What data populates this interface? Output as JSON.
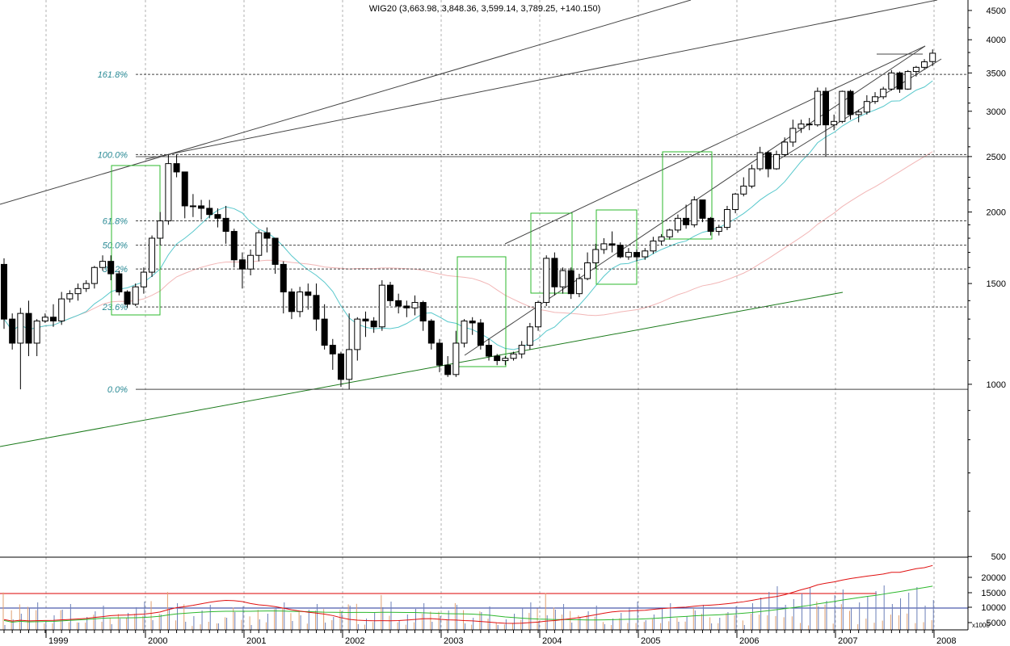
{
  "chart_data": {
    "type": "candlestick",
    "title": "WIG20 (3,663.98, 3,848.36, 3,599.14, 3,789.25, +140.150)",
    "price_axis": {
      "scale": "log",
      "ticks": [
        4500,
        4000,
        3500,
        3000,
        2500,
        2000,
        1500,
        1000,
        500
      ]
    },
    "time_axis": {
      "ticks": [
        "1999",
        "2000",
        "2001",
        "2002",
        "2003",
        "2004",
        "2005",
        "2006",
        "2007",
        "2008"
      ]
    },
    "fibonacci_levels": [
      {
        "label": "161.8%",
        "value": 3480
      },
      {
        "label": "100.0%",
        "value": 2520
      },
      {
        "label": "61.8%",
        "value": 1930
      },
      {
        "label": "50.0%",
        "value": 1750
      },
      {
        "label": "38.2%",
        "value": 1590
      },
      {
        "label": "23.6%",
        "value": 1365
      },
      {
        "label": "0.0%",
        "value": 980
      }
    ],
    "series": [
      {
        "name": "",
        "values": [
          [
            1620,
            1300,
            1660,
            1250
          ],
          [
            1300,
            1180,
            1330,
            1150
          ],
          [
            1180,
            1330,
            1360,
            980
          ],
          [
            1330,
            1180,
            1400,
            1120
          ],
          [
            1180,
            1290,
            1300,
            1120
          ],
          [
            1290,
            1310,
            1330,
            1280
          ],
          [
            1310,
            1290,
            1380,
            1260
          ],
          [
            1290,
            1410,
            1450,
            1270
          ],
          [
            1410,
            1440,
            1460,
            1390
          ],
          [
            1440,
            1470,
            1500,
            1400
          ],
          [
            1470,
            1500,
            1520,
            1450
          ],
          [
            1500,
            1600,
            1610,
            1470
          ],
          [
            1600,
            1640,
            1680,
            1580
          ],
          [
            1640,
            1560,
            1680,
            1520
          ],
          [
            1560,
            1450,
            1580,
            1430
          ],
          [
            1450,
            1380,
            1460,
            1360
          ],
          [
            1380,
            1480,
            1500,
            1370
          ],
          [
            1480,
            1570,
            1600,
            1440
          ],
          [
            1570,
            1800,
            1820,
            1540
          ],
          [
            1800,
            1930,
            2000,
            1750
          ],
          [
            1930,
            2430,
            2520,
            1900
          ],
          [
            2430,
            2350,
            2520,
            2300
          ],
          [
            2350,
            2050,
            2350,
            1950
          ],
          [
            2050,
            2050,
            2150,
            1960
          ],
          [
            2050,
            2030,
            2100,
            1940
          ],
          [
            2030,
            1980,
            2100,
            1950
          ],
          [
            1980,
            1950,
            2030,
            1880
          ],
          [
            1950,
            1850,
            2050,
            1760
          ],
          [
            1850,
            1650,
            1870,
            1600
          ],
          [
            1650,
            1590,
            1700,
            1470
          ],
          [
            1590,
            1680,
            1720,
            1550
          ],
          [
            1680,
            1840,
            1860,
            1640
          ],
          [
            1840,
            1800,
            1880,
            1700
          ],
          [
            1800,
            1620,
            1800,
            1560
          ],
          [
            1620,
            1450,
            1640,
            1330
          ],
          [
            1450,
            1340,
            1470,
            1300
          ],
          [
            1340,
            1450,
            1480,
            1310
          ],
          [
            1450,
            1430,
            1500,
            1350
          ],
          [
            1430,
            1300,
            1500,
            1240
          ],
          [
            1300,
            1170,
            1380,
            1150
          ],
          [
            1170,
            1130,
            1200,
            1060
          ],
          [
            1130,
            1020,
            1140,
            990
          ],
          [
            1020,
            1150,
            1330,
            980
          ],
          [
            1150,
            1300,
            1310,
            1100
          ],
          [
            1300,
            1290,
            1340,
            1210
          ],
          [
            1290,
            1260,
            1310,
            1230
          ],
          [
            1260,
            1490,
            1520,
            1240
          ],
          [
            1490,
            1400,
            1510,
            1370
          ],
          [
            1400,
            1370,
            1440,
            1330
          ],
          [
            1370,
            1360,
            1400,
            1310
          ],
          [
            1360,
            1390,
            1430,
            1320
          ],
          [
            1390,
            1290,
            1400,
            1240
          ],
          [
            1290,
            1180,
            1300,
            1150
          ],
          [
            1180,
            1080,
            1200,
            1050
          ],
          [
            1080,
            1040,
            1120,
            1030
          ],
          [
            1040,
            1180,
            1240,
            1030
          ],
          [
            1180,
            1290,
            1300,
            1160
          ],
          [
            1290,
            1280,
            1310,
            1220
          ],
          [
            1280,
            1170,
            1300,
            1150
          ],
          [
            1170,
            1120,
            1200,
            1100
          ],
          [
            1120,
            1100,
            1130,
            1080
          ],
          [
            1100,
            1110,
            1120,
            1080
          ],
          [
            1110,
            1130,
            1140,
            1100
          ],
          [
            1130,
            1170,
            1190,
            1110
          ],
          [
            1170,
            1260,
            1280,
            1150
          ],
          [
            1260,
            1390,
            1400,
            1240
          ],
          [
            1390,
            1660,
            1680,
            1370
          ],
          [
            1660,
            1480,
            1700,
            1430
          ],
          [
            1480,
            1580,
            1600,
            1440
          ],
          [
            1580,
            1440,
            1600,
            1410
          ],
          [
            1440,
            1530,
            1560,
            1420
          ],
          [
            1530,
            1630,
            1700,
            1520
          ],
          [
            1630,
            1720,
            1760,
            1590
          ],
          [
            1720,
            1760,
            1800,
            1690
          ],
          [
            1760,
            1750,
            1850,
            1700
          ],
          [
            1750,
            1670,
            1770,
            1660
          ],
          [
            1670,
            1700,
            1730,
            1650
          ],
          [
            1700,
            1670,
            1720,
            1640
          ],
          [
            1670,
            1710,
            1730,
            1650
          ],
          [
            1710,
            1780,
            1810,
            1690
          ],
          [
            1780,
            1810,
            1830,
            1750
          ],
          [
            1810,
            1860,
            1870,
            1790
          ],
          [
            1860,
            1950,
            1980,
            1840
          ],
          [
            1950,
            1900,
            2060,
            1870
          ],
          [
            1900,
            2100,
            2130,
            1880
          ],
          [
            2100,
            1950,
            2100,
            1920
          ],
          [
            1950,
            1850,
            1960,
            1820
          ],
          [
            1850,
            1880,
            1900,
            1820
          ],
          [
            1880,
            2020,
            2050,
            1860
          ],
          [
            2020,
            2150,
            2160,
            1990
          ],
          [
            2150,
            2220,
            2300,
            2130
          ],
          [
            2220,
            2380,
            2420,
            2200
          ],
          [
            2380,
            2540,
            2600,
            2360
          ],
          [
            2540,
            2380,
            2560,
            2300
          ],
          [
            2380,
            2520,
            2560,
            2370
          ],
          [
            2520,
            2650,
            2700,
            2500
          ],
          [
            2650,
            2800,
            2900,
            2600
          ],
          [
            2800,
            2850,
            2900,
            2750
          ],
          [
            2850,
            2840,
            2920,
            2780
          ],
          [
            2840,
            3250,
            3300,
            2820
          ],
          [
            3250,
            2840,
            3300,
            2500
          ],
          [
            2840,
            2880,
            2960,
            2780
          ],
          [
            2880,
            3250,
            3260,
            2860
          ],
          [
            3250,
            2960,
            3270,
            2900
          ],
          [
            2960,
            2990,
            3020,
            2870
          ],
          [
            2990,
            3120,
            3200,
            2960
          ],
          [
            3120,
            3180,
            3240,
            3090
          ],
          [
            3180,
            3280,
            3310,
            3150
          ],
          [
            3280,
            3500,
            3540,
            3260
          ],
          [
            3500,
            3280,
            3520,
            3230
          ],
          [
            3280,
            3520,
            3540,
            3270
          ],
          [
            3520,
            3580,
            3600,
            3450
          ],
          [
            3580,
            3660,
            3700,
            3550
          ],
          [
            3664,
            3789,
            3848,
            3599
          ]
        ]
      }
    ],
    "lower_panel": {
      "ticks": [
        20000,
        15000,
        10000,
        5000
      ],
      "unit": "x1000"
    }
  }
}
